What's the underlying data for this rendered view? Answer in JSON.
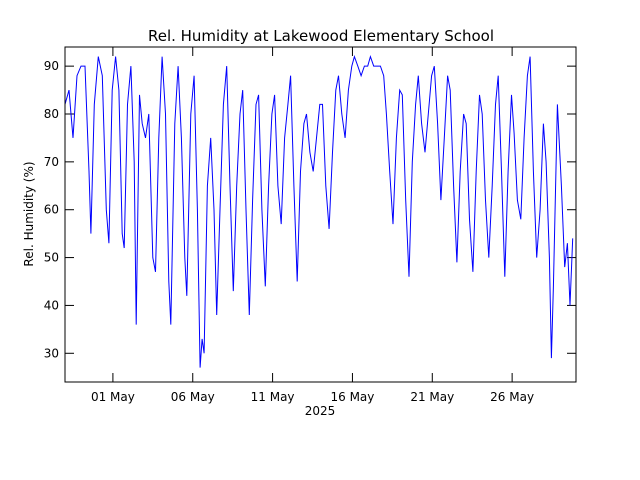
{
  "chart_data": {
    "type": "line",
    "title": "Rel. Humidity at Lakewood Elementary School",
    "ylabel": "Rel. Humidity (%)",
    "xlabel": "2025",
    "ylim": [
      24,
      94
    ],
    "xlim": [
      "2025-04-28T00:00",
      "2025-05-30T00:00"
    ],
    "y_ticks": [
      30,
      40,
      50,
      60,
      70,
      80,
      90
    ],
    "x_ticks": [
      {
        "date": "2025-05-01",
        "label": "01 May"
      },
      {
        "date": "2025-05-06",
        "label": "06 May"
      },
      {
        "date": "2025-05-11",
        "label": "11 May"
      },
      {
        "date": "2025-05-16",
        "label": "16 May"
      },
      {
        "date": "2025-05-21",
        "label": "21 May"
      },
      {
        "date": "2025-05-26",
        "label": "26 May"
      }
    ],
    "grid": false,
    "line_color": "#0000ff",
    "series": [
      {
        "points": [
          [
            "2025-04-28T00:00",
            82
          ],
          [
            "2025-04-28T06:00",
            85
          ],
          [
            "2025-04-28T12:00",
            75
          ],
          [
            "2025-04-28T18:00",
            88
          ],
          [
            "2025-04-29T00:00",
            90
          ],
          [
            "2025-04-29T06:00",
            90
          ],
          [
            "2025-04-29T12:00",
            68
          ],
          [
            "2025-04-29T15:00",
            55
          ],
          [
            "2025-04-29T20:00",
            82
          ],
          [
            "2025-04-30T02:00",
            92
          ],
          [
            "2025-04-30T08:00",
            88
          ],
          [
            "2025-04-30T14:00",
            60
          ],
          [
            "2025-04-30T18:00",
            53
          ],
          [
            "2025-04-30T23:00",
            85
          ],
          [
            "2025-05-01T04:00",
            92
          ],
          [
            "2025-05-01T09:00",
            85
          ],
          [
            "2025-05-01T14:00",
            55
          ],
          [
            "2025-05-01T17:00",
            52
          ],
          [
            "2025-05-01T22:00",
            82
          ],
          [
            "2025-05-02T03:00",
            90
          ],
          [
            "2025-05-02T08:00",
            70
          ],
          [
            "2025-05-02T11:00",
            36
          ],
          [
            "2025-05-02T16:00",
            84
          ],
          [
            "2025-05-02T20:00",
            78
          ],
          [
            "2025-05-03T01:00",
            75
          ],
          [
            "2025-05-03T06:00",
            80
          ],
          [
            "2025-05-03T12:00",
            50
          ],
          [
            "2025-05-03T16:00",
            47
          ],
          [
            "2025-05-03T21:00",
            75
          ],
          [
            "2025-05-04T02:00",
            92
          ],
          [
            "2025-05-04T07:00",
            80
          ],
          [
            "2025-05-04T12:00",
            45
          ],
          [
            "2025-05-04T15:00",
            36
          ],
          [
            "2025-05-04T21:00",
            78
          ],
          [
            "2025-05-05T02:00",
            90
          ],
          [
            "2025-05-05T07:00",
            75
          ],
          [
            "2025-05-05T12:00",
            50
          ],
          [
            "2025-05-05T15:00",
            42
          ],
          [
            "2025-05-05T21:00",
            80
          ],
          [
            "2025-05-06T02:00",
            88
          ],
          [
            "2025-05-06T07:00",
            60
          ],
          [
            "2025-05-06T11:00",
            27
          ],
          [
            "2025-05-06T14:00",
            33
          ],
          [
            "2025-05-06T17:00",
            30
          ],
          [
            "2025-05-06T22:00",
            65
          ],
          [
            "2025-05-07T03:00",
            75
          ],
          [
            "2025-05-07T08:00",
            60
          ],
          [
            "2025-05-07T12:00",
            38
          ],
          [
            "2025-05-07T17:00",
            60
          ],
          [
            "2025-05-07T22:00",
            82
          ],
          [
            "2025-05-08T03:00",
            90
          ],
          [
            "2025-05-08T08:00",
            65
          ],
          [
            "2025-05-08T13:00",
            43
          ],
          [
            "2025-05-08T18:00",
            65
          ],
          [
            "2025-05-08T23:00",
            80
          ],
          [
            "2025-05-09T03:00",
            85
          ],
          [
            "2025-05-09T08:00",
            60
          ],
          [
            "2025-05-09T13:00",
            38
          ],
          [
            "2025-05-09T18:00",
            62
          ],
          [
            "2025-05-09T23:00",
            82
          ],
          [
            "2025-05-10T03:00",
            84
          ],
          [
            "2025-05-10T08:00",
            60
          ],
          [
            "2025-05-10T13:00",
            44
          ],
          [
            "2025-05-10T18:00",
            65
          ],
          [
            "2025-05-10T23:00",
            80
          ],
          [
            "2025-05-11T03:00",
            84
          ],
          [
            "2025-05-11T08:00",
            65
          ],
          [
            "2025-05-11T13:00",
            57
          ],
          [
            "2025-05-11T18:00",
            75
          ],
          [
            "2025-05-11T23:00",
            82
          ],
          [
            "2025-05-12T03:00",
            88
          ],
          [
            "2025-05-12T08:00",
            65
          ],
          [
            "2025-05-12T13:00",
            45
          ],
          [
            "2025-05-12T18:00",
            68
          ],
          [
            "2025-05-12T23:00",
            78
          ],
          [
            "2025-05-13T03:00",
            80
          ],
          [
            "2025-05-13T08:00",
            72
          ],
          [
            "2025-05-13T13:00",
            68
          ],
          [
            "2025-05-13T18:00",
            75
          ],
          [
            "2025-05-13T23:00",
            82
          ],
          [
            "2025-05-14T03:00",
            82
          ],
          [
            "2025-05-14T08:00",
            65
          ],
          [
            "2025-05-14T13:00",
            56
          ],
          [
            "2025-05-14T18:00",
            72
          ],
          [
            "2025-05-14T23:00",
            85
          ],
          [
            "2025-05-15T03:00",
            88
          ],
          [
            "2025-05-15T08:00",
            80
          ],
          [
            "2025-05-15T13:00",
            75
          ],
          [
            "2025-05-15T18:00",
            85
          ],
          [
            "2025-05-15T23:00",
            90
          ],
          [
            "2025-05-16T03:00",
            92
          ],
          [
            "2025-05-16T08:00",
            90
          ],
          [
            "2025-05-16T13:00",
            88
          ],
          [
            "2025-05-16T18:00",
            90
          ],
          [
            "2025-05-16T23:00",
            90
          ],
          [
            "2025-05-17T03:00",
            92
          ],
          [
            "2025-05-17T08:00",
            90
          ],
          [
            "2025-05-17T13:00",
            90
          ],
          [
            "2025-05-17T18:00",
            90
          ],
          [
            "2025-05-17T23:00",
            88
          ],
          [
            "2025-05-18T03:00",
            80
          ],
          [
            "2025-05-18T08:00",
            68
          ],
          [
            "2025-05-18T13:00",
            57
          ],
          [
            "2025-05-18T18:00",
            75
          ],
          [
            "2025-05-18T23:00",
            85
          ],
          [
            "2025-05-19T03:00",
            84
          ],
          [
            "2025-05-19T08:00",
            62
          ],
          [
            "2025-05-19T13:00",
            46
          ],
          [
            "2025-05-19T18:00",
            70
          ],
          [
            "2025-05-19T23:00",
            82
          ],
          [
            "2025-05-20T03:00",
            88
          ],
          [
            "2025-05-20T08:00",
            78
          ],
          [
            "2025-05-20T13:00",
            72
          ],
          [
            "2025-05-20T18:00",
            80
          ],
          [
            "2025-05-20T23:00",
            88
          ],
          [
            "2025-05-21T03:00",
            90
          ],
          [
            "2025-05-21T08:00",
            78
          ],
          [
            "2025-05-21T13:00",
            62
          ],
          [
            "2025-05-21T18:00",
            75
          ],
          [
            "2025-05-21T23:00",
            88
          ],
          [
            "2025-05-22T03:00",
            85
          ],
          [
            "2025-05-22T08:00",
            65
          ],
          [
            "2025-05-22T13:00",
            49
          ],
          [
            "2025-05-22T18:00",
            68
          ],
          [
            "2025-05-22T23:00",
            80
          ],
          [
            "2025-05-23T03:00",
            78
          ],
          [
            "2025-05-23T08:00",
            58
          ],
          [
            "2025-05-23T13:00",
            47
          ],
          [
            "2025-05-23T18:00",
            68
          ],
          [
            "2025-05-23T23:00",
            84
          ],
          [
            "2025-05-24T03:00",
            80
          ],
          [
            "2025-05-24T08:00",
            62
          ],
          [
            "2025-05-24T13:00",
            50
          ],
          [
            "2025-05-24T18:00",
            65
          ],
          [
            "2025-05-24T23:00",
            82
          ],
          [
            "2025-05-25T03:00",
            88
          ],
          [
            "2025-05-25T08:00",
            68
          ],
          [
            "2025-05-25T13:00",
            46
          ],
          [
            "2025-05-25T18:00",
            68
          ],
          [
            "2025-05-25T23:00",
            84
          ],
          [
            "2025-05-26T03:00",
            76
          ],
          [
            "2025-05-26T08:00",
            62
          ],
          [
            "2025-05-26T13:00",
            58
          ],
          [
            "2025-05-26T18:00",
            75
          ],
          [
            "2025-05-26T23:00",
            88
          ],
          [
            "2025-05-27T03:00",
            92
          ],
          [
            "2025-05-27T08:00",
            68
          ],
          [
            "2025-05-27T13:00",
            50
          ],
          [
            "2025-05-27T18:00",
            60
          ],
          [
            "2025-05-27T23:00",
            78
          ],
          [
            "2025-05-28T03:00",
            70
          ],
          [
            "2025-05-28T08:00",
            50
          ],
          [
            "2025-05-28T11:00",
            29
          ],
          [
            "2025-05-28T14:00",
            44
          ],
          [
            "2025-05-28T20:00",
            82
          ],
          [
            "2025-05-29T02:00",
            65
          ],
          [
            "2025-05-29T07:00",
            48
          ],
          [
            "2025-05-29T11:00",
            53
          ],
          [
            "2025-05-29T15:00",
            40
          ],
          [
            "2025-05-29T19:00",
            54
          ]
        ]
      }
    ]
  }
}
